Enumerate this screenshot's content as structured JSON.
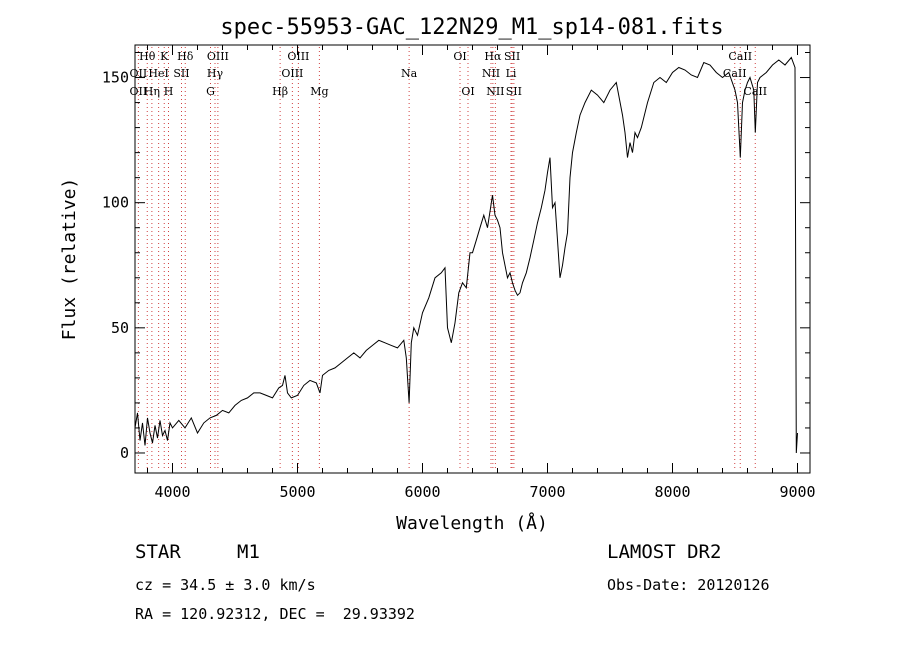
{
  "chart_data": {
    "type": "line",
    "title": "spec-55953-GAC_122N29_M1_sp14-081.fits",
    "xlabel": "Wavelength (Å)",
    "ylabel": "Flux (relative)",
    "xlim": [
      3700,
      9100
    ],
    "ylim": [
      -8,
      163
    ],
    "xticks": [
      4000,
      5000,
      6000,
      7000,
      8000,
      9000
    ],
    "yticks": [
      0,
      50,
      100,
      150
    ],
    "grid": false,
    "series": [
      {
        "x": [
          3700,
          3720,
          3740,
          3760,
          3780,
          3800,
          3820,
          3840,
          3860,
          3880,
          3900,
          3920,
          3940,
          3960,
          3980,
          4000,
          4050,
          4100,
          4150,
          4200,
          4250,
          4300,
          4350,
          4400,
          4450,
          4500,
          4550,
          4600,
          4650,
          4700,
          4750,
          4800,
          4850,
          4880,
          4900,
          4920,
          4950,
          5000,
          5050,
          5100,
          5150,
          5180,
          5200,
          5250,
          5300,
          5350,
          5400,
          5450,
          5500,
          5550,
          5600,
          5650,
          5700,
          5750,
          5800,
          5850,
          5870,
          5893,
          5910,
          5930,
          5960,
          6000,
          6050,
          6100,
          6150,
          6180,
          6200,
          6230,
          6260,
          6290,
          6320,
          6350,
          6380,
          6400,
          6430,
          6460,
          6490,
          6520,
          6560,
          6580,
          6600,
          6620,
          6640,
          6660,
          6680,
          6700,
          6720,
          6740,
          6760,
          6780,
          6800,
          6830,
          6860,
          6890,
          6920,
          6950,
          6980,
          7000,
          7020,
          7040,
          7060,
          7080,
          7100,
          7120,
          7140,
          7160,
          7180,
          7200,
          7230,
          7260,
          7300,
          7350,
          7400,
          7450,
          7500,
          7550,
          7600,
          7620,
          7640,
          7660,
          7680,
          7700,
          7720,
          7750,
          7800,
          7850,
          7900,
          7950,
          8000,
          8050,
          8100,
          8150,
          8200,
          8250,
          8300,
          8350,
          8400,
          8450,
          8500,
          8520,
          8542,
          8560,
          8580,
          8600,
          8620,
          8650,
          8662,
          8680,
          8700,
          8750,
          8800,
          8850,
          8900,
          8950,
          8980,
          8990,
          9000
        ],
        "y": [
          10,
          16,
          5,
          12,
          3,
          14,
          8,
          4,
          11,
          6,
          13,
          7,
          9,
          5,
          12,
          10,
          13,
          10,
          14,
          8,
          12,
          14,
          15,
          17,
          16,
          19,
          21,
          22,
          24,
          24,
          23,
          22,
          26,
          27,
          31,
          24,
          22,
          23,
          27,
          29,
          28,
          24,
          31,
          33,
          34,
          36,
          38,
          40,
          38,
          41,
          43,
          45,
          44,
          43,
          42,
          45,
          38,
          20,
          44,
          50,
          47,
          56,
          62,
          70,
          72,
          74,
          50,
          44,
          52,
          64,
          68,
          66,
          80,
          80,
          85,
          90,
          95,
          90,
          103,
          95,
          93,
          90,
          80,
          75,
          70,
          72,
          68,
          65,
          63,
          64,
          68,
          72,
          78,
          85,
          92,
          98,
          105,
          112,
          118,
          98,
          100,
          85,
          70,
          75,
          82,
          88,
          110,
          120,
          128,
          135,
          140,
          145,
          143,
          140,
          145,
          148,
          135,
          128,
          118,
          124,
          120,
          128,
          126,
          130,
          140,
          148,
          150,
          148,
          152,
          154,
          153,
          151,
          150,
          156,
          155,
          152,
          150,
          152,
          145,
          140,
          118,
          140,
          145,
          148,
          150,
          145,
          128,
          148,
          150,
          152,
          155,
          157,
          155,
          158,
          154,
          0,
          8
        ]
      }
    ],
    "spectral_lines": [
      {
        "name": "Hθ",
        "wave": 3798,
        "row": 0
      },
      {
        "name": "K",
        "wave": 3934,
        "row": 0
      },
      {
        "name": "Hδ",
        "wave": 4102,
        "row": 0
      },
      {
        "name": "OIII",
        "wave": 4363,
        "row": 0
      },
      {
        "name": "OIII",
        "wave": 5007,
        "row": 0
      },
      {
        "name": "OI",
        "wave": 6300,
        "row": 0
      },
      {
        "name": "Hα",
        "wave": 6563,
        "row": 0
      },
      {
        "name": "SII",
        "wave": 6717,
        "row": 0
      },
      {
        "name": "CaII",
        "wave": 8542,
        "row": 0
      },
      {
        "name": "OII",
        "wave": 3727,
        "row": 1
      },
      {
        "name": "HeI",
        "wave": 3889,
        "row": 1
      },
      {
        "name": "SII",
        "wave": 4072,
        "row": 1
      },
      {
        "name": "Hγ",
        "wave": 4340,
        "row": 1
      },
      {
        "name": "OIII",
        "wave": 4959,
        "row": 1
      },
      {
        "name": "Na",
        "wave": 5893,
        "row": 1
      },
      {
        "name": "NII",
        "wave": 6548,
        "row": 1
      },
      {
        "name": "Li",
        "wave": 6708,
        "row": 1
      },
      {
        "name": "CaII",
        "wave": 8498,
        "row": 1
      },
      {
        "name": "OII",
        "wave": 3727,
        "row": 2
      },
      {
        "name": "Hη",
        "wave": 3835,
        "row": 2
      },
      {
        "name": "H",
        "wave": 3968,
        "row": 2
      },
      {
        "name": "G",
        "wave": 4304,
        "row": 2
      },
      {
        "name": "Hβ",
        "wave": 4861,
        "row": 2
      },
      {
        "name": "Mg",
        "wave": 5175,
        "row": 2
      },
      {
        "name": "OI",
        "wave": 6364,
        "row": 2
      },
      {
        "name": "NII",
        "wave": 6583,
        "row": 2
      },
      {
        "name": "SII",
        "wave": 6731,
        "row": 2
      },
      {
        "name": "CaII",
        "wave": 8662,
        "row": 2
      }
    ]
  },
  "info": {
    "class": "STAR",
    "subclass": "M1",
    "survey": "LAMOST DR2",
    "cz": "cz = 34.5 ± 3.0 km/s",
    "obs_date": "Obs-Date: 20120126",
    "radec": "RA = 120.92312, DEC =  29.93392"
  },
  "colors": {
    "line": "#000000",
    "marker": "#d04040"
  }
}
